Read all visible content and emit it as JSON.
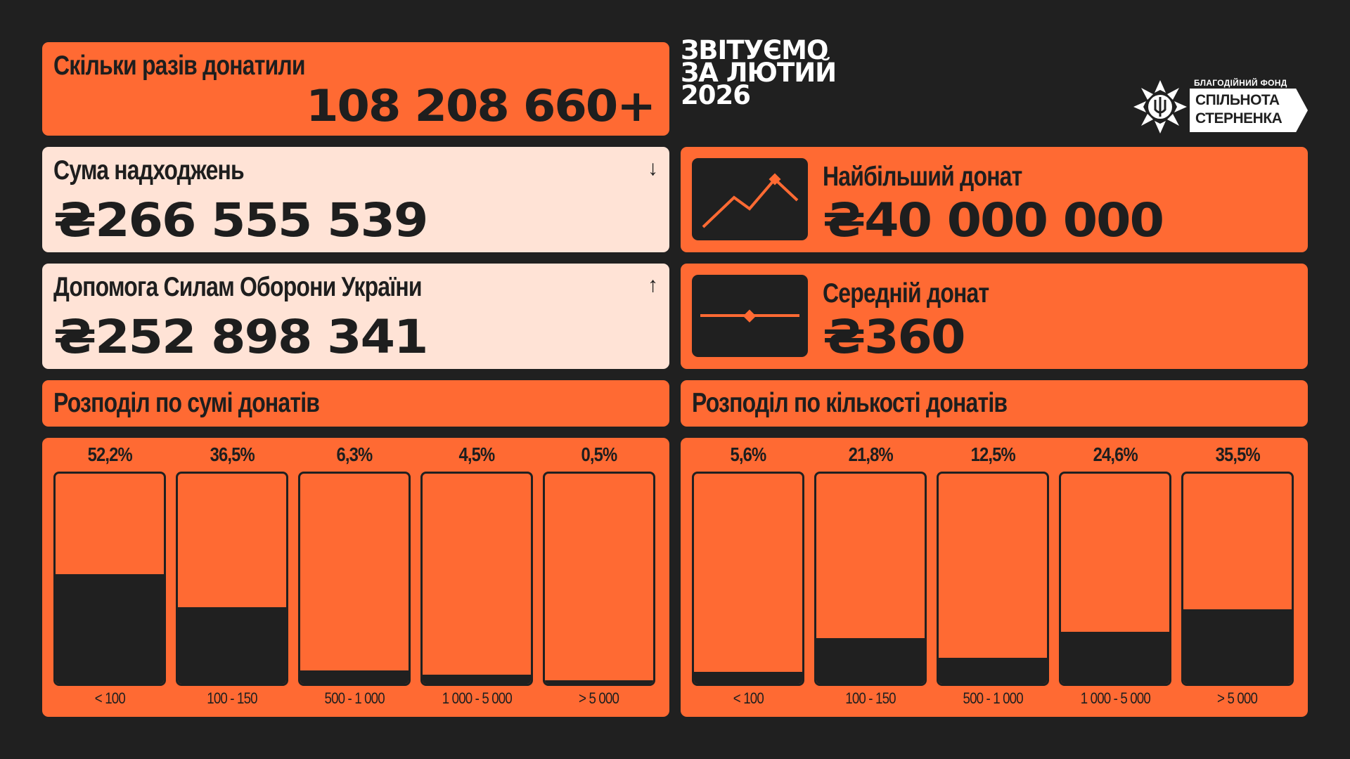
{
  "header": {
    "title_lines": [
      "ЗВІТУЄМО",
      "ЗА ЛЮТИЙ",
      "2026"
    ],
    "logo": {
      "top_text": "БЛАГОДІЙНИЙ ФОНД",
      "line1": "СПІЛЬНОТА",
      "line2": "СТЕРНЕНКА",
      "icon": "trident-flower-icon"
    }
  },
  "donations_count": {
    "label": "Скільки разів донатили",
    "value": "108 208 660+"
  },
  "income": {
    "label": "Сума надходжень",
    "value": "₴266 555 539",
    "arrow_icon": "arrow-down-icon",
    "arrow": "↓"
  },
  "defense_help": {
    "label": "Допомога Силам Оборони України",
    "value": "₴252 898 341",
    "arrow_icon": "arrow-up-icon",
    "arrow": "↑"
  },
  "largest_donation": {
    "label": "Найбільший донат",
    "value": "₴40 000 000",
    "icon": "trend-up-line-icon"
  },
  "average_donation": {
    "label": "Середній донат",
    "value": "₴360",
    "icon": "flat-line-icon"
  },
  "colors": {
    "background": "#202020",
    "accent": "#ff6a33",
    "cream": "#ffe3d6",
    "dark": "#202020"
  },
  "chart_data": [
    {
      "type": "bar",
      "title": "Розподіл по сумі донатів",
      "categories": [
        "< 100",
        "100 - 150",
        "500 - 1 000",
        "1 000 - 5 000",
        "> 5 000"
      ],
      "values": [
        52.2,
        36.5,
        6.3,
        4.5,
        0.5
      ],
      "value_labels": [
        "52,2%",
        "36,5%",
        "6,3%",
        "4,5%",
        "0,5%"
      ],
      "ylim": [
        0,
        100
      ]
    },
    {
      "type": "bar",
      "title": "Розподіл по кількості донатів",
      "categories": [
        "< 100",
        "100 - 150",
        "500 - 1 000",
        "1 000 - 5 000",
        "> 5 000"
      ],
      "values": [
        5.6,
        21.8,
        12.5,
        24.6,
        35.5
      ],
      "value_labels": [
        "5,6%",
        "21,8%",
        "12,5%",
        "24,6%",
        "35,5%"
      ],
      "ylim": [
        0,
        100
      ]
    }
  ]
}
